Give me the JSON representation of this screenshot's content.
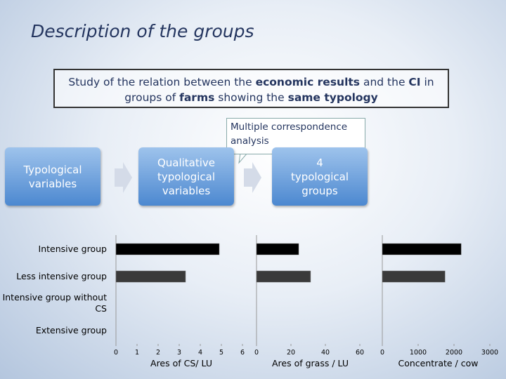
{
  "header": {
    "title": "Description of the groups"
  },
  "study_box": {
    "segments": [
      {
        "text": "Study of the relation between the ",
        "bold": false
      },
      {
        "text": "economic results",
        "bold": true
      },
      {
        "text": " and the ",
        "bold": false
      },
      {
        "text": "CI",
        "bold": true
      },
      {
        "text": " in groups of ",
        "bold": false
      },
      {
        "text": "farms",
        "bold": true
      },
      {
        "text": " showing the ",
        "bold": false
      },
      {
        "text": "same typology",
        "bold": true
      }
    ]
  },
  "callout": {
    "label": "Multiple correspondence analysis"
  },
  "flow": {
    "nodes": [
      {
        "label": "Typological variables"
      },
      {
        "label": "Qualitative typological variables"
      },
      {
        "label": "4 typological groups"
      }
    ]
  },
  "chart_data": [
    {
      "type": "bar",
      "orientation": "horizontal",
      "categories": [
        "Intensive group",
        "Less intensive group",
        "Intensive group without CS",
        "Extensive group"
      ],
      "series": [
        {
          "colors": [
            "#000000",
            "#3a3a3a",
            "#3a3a3a",
            "#3a3a3a"
          ],
          "values": [
            4.9,
            3.3,
            null,
            null
          ]
        }
      ],
      "x_label": "Ares of CS/ LU",
      "xlim": [
        0,
        6
      ],
      "xticks": [
        0,
        1,
        2,
        3,
        4,
        5,
        6
      ]
    },
    {
      "type": "bar",
      "orientation": "horizontal",
      "series": [
        {
          "colors": [
            "#000000",
            "#3a3a3a",
            "#3a3a3a",
            "#3a3a3a"
          ],
          "values": [
            24.5,
            31.4,
            null,
            null
          ]
        }
      ],
      "x_label": "Ares of grass / LU",
      "xlim": [
        0,
        60
      ],
      "xticks": [
        0,
        20,
        40,
        60
      ]
    },
    {
      "type": "bar",
      "orientation": "horizontal",
      "series": [
        {
          "colors": [
            "#000000",
            "#3a3a3a",
            "#3a3a3a",
            "#3a3a3a"
          ],
          "values": [
            2200,
            1750,
            null,
            null
          ]
        }
      ],
      "x_label": "Concentrate / cow",
      "xlim": [
        0,
        3000
      ],
      "xticks": [
        0,
        1000,
        2000,
        3000
      ]
    }
  ]
}
